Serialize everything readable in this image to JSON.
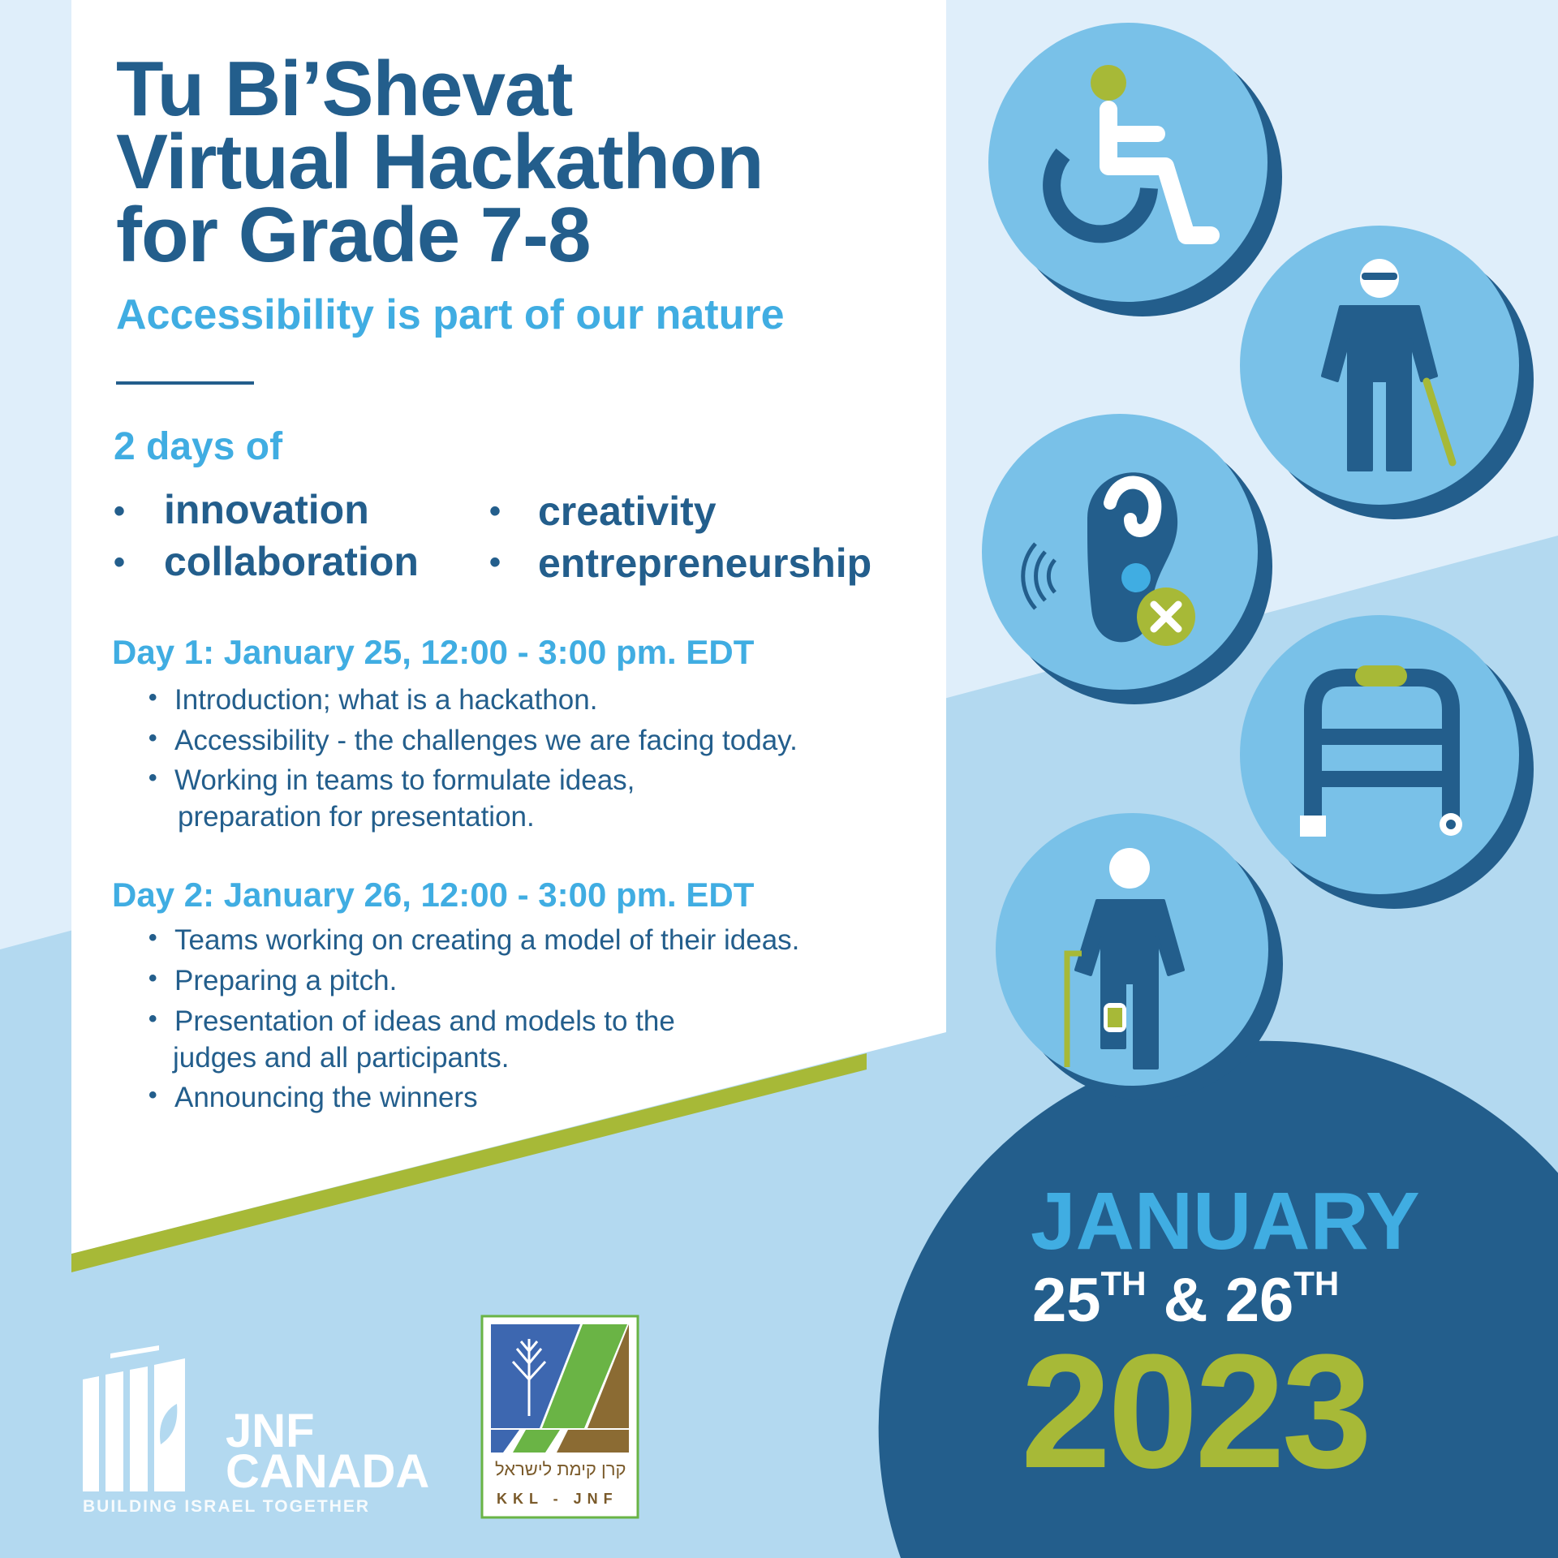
{
  "title": {
    "line1": "Tu Bi’Shevat",
    "line2": "Virtual Hackathon",
    "line3": "for Grade 7-8"
  },
  "subtitle": "Accessibility is part of our nature",
  "days_intro": "2 days of",
  "keywords": [
    "innovation",
    "creativity",
    "collaboration",
    "entrepreneurship"
  ],
  "bullet": "•",
  "day1": {
    "heading": "Day 1: January 25, 12:00 - 3:00 pm. EDT",
    "items": [
      "Introduction; what is a hackathon.",
      "Accessibility - the challenges we are facing today.",
      "Working in teams to formulate ideas,",
      "preparation for presentation."
    ]
  },
  "day2": {
    "heading": "Day 2: January 26, 12:00 - 3:00 pm. EDT",
    "items": [
      "Teams working on creating a model of their ideas.",
      "Preparing a pitch.",
      "Presentation of ideas and models to the",
      "judges and all participants.",
      "Announcing the winners"
    ]
  },
  "date": {
    "month": "JANUARY",
    "day1": "25",
    "day1_suffix": "TH",
    "amp": "&",
    "day2": "26",
    "day2_suffix": "TH",
    "year": "2023"
  },
  "logos": {
    "jnf_line1": "JNF",
    "jnf_line2": "CANADA",
    "jnf_tagline": "BUILDING ISRAEL TOGETHER",
    "kkl_hebrew": "קרן קימת לישראל",
    "kkl_latin": "KKL - JNF"
  },
  "icons": [
    "wheelchair-icon",
    "blind-person-cane-icon",
    "deaf-ear-icon",
    "walker-icon",
    "prosthetic-leg-cane-icon"
  ],
  "colors": {
    "dark_blue": "#235e8c",
    "light_blue": "#40ade2",
    "circle_blue": "#79c1e8",
    "green": "#a7b937",
    "bg_light": "#dfeefa",
    "bg_mid": "#b3d9f0"
  }
}
